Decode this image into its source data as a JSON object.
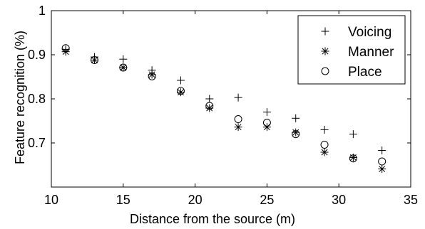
{
  "chart_data": {
    "type": "scatter",
    "xlabel": "Distance from the source (m)",
    "ylabel": "Feature recognition (%)",
    "xlim": [
      10,
      35
    ],
    "ylim": [
      0.6,
      1.0
    ],
    "xticks": [
      10,
      15,
      20,
      25,
      30,
      35
    ],
    "yticks": [
      0.7,
      0.8,
      0.9,
      1.0
    ],
    "xtick_labels": [
      "10",
      "15",
      "20",
      "25",
      "30",
      "35"
    ],
    "ytick_labels": [
      "0.7",
      "0.8",
      "0.9",
      "1"
    ],
    "grid": false,
    "legend_position": "top-right",
    "x": [
      11,
      13,
      15,
      17,
      19,
      21,
      23,
      25,
      27,
      29,
      31,
      33
    ],
    "series": [
      {
        "name": "Voicing",
        "marker": "plus",
        "values": [
          0.912,
          0.895,
          0.89,
          0.865,
          0.842,
          0.8,
          0.803,
          0.77,
          0.756,
          0.73,
          0.72,
          0.683
        ]
      },
      {
        "name": "Manner",
        "marker": "asterisk",
        "values": [
          0.907,
          0.888,
          0.871,
          0.855,
          0.815,
          0.779,
          0.736,
          0.736,
          0.724,
          0.679,
          0.667,
          0.641
        ]
      },
      {
        "name": "Place",
        "marker": "circle",
        "values": [
          0.915,
          0.888,
          0.871,
          0.851,
          0.818,
          0.784,
          0.754,
          0.746,
          0.72,
          0.696,
          0.665,
          0.658
        ]
      }
    ]
  }
}
